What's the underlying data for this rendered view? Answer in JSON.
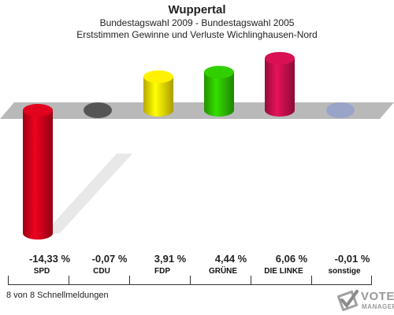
{
  "header": {
    "title": "Wuppertal",
    "subtitle": "Bundestagswahl 2009 - Bundestagswahl 2005",
    "subtitle2": "Erststimmen Gewinne und Verluste Wichlinghausen-Nord"
  },
  "chart_data": {
    "type": "bar",
    "categories": [
      "SPD",
      "CDU",
      "FDP",
      "GRÜNE",
      "DIE LINKE",
      "sonstige"
    ],
    "values": [
      -14.33,
      -0.07,
      3.91,
      4.44,
      6.06,
      -0.01
    ],
    "value_labels": [
      "-14,33 %",
      "-0,07 %",
      "3,91 %",
      "4,44 %",
      "6,06 %",
      "-0,01 %"
    ],
    "colors": [
      "#d0021b",
      "#555555",
      "#f5e000",
      "#2ec000",
      "#c8104e",
      "#9aa4c8"
    ],
    "title": "Wuppertal",
    "xlabel": "",
    "ylabel": ""
  },
  "footer": {
    "status": "8 von 8 Schnellmeldungen"
  },
  "logo": {
    "line1": "VOTE",
    "line2": "MANAGER"
  }
}
